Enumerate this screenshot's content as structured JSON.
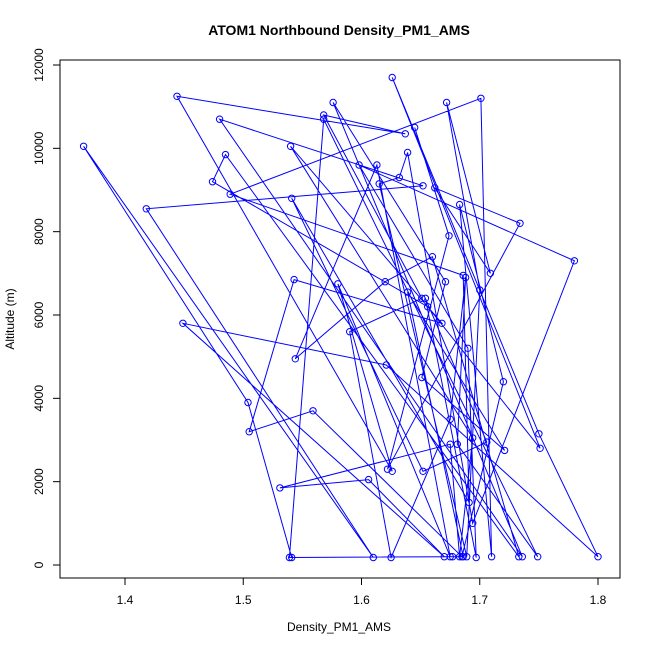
{
  "chart_data": {
    "type": "line",
    "title": "ATOM1 Northbound Density_PM1_AMS",
    "xlabel": "Density_PM1_AMS",
    "ylabel": "Altitude (m)",
    "xlim": [
      1.35,
      1.8
    ],
    "ylim": [
      0,
      12000
    ],
    "xticks": [
      1.4,
      1.5,
      1.6,
      1.7,
      1.8
    ],
    "xtick_labels": [
      "1.4",
      "1.5",
      "1.6",
      "1.7",
      "1.8"
    ],
    "yticks": [
      0,
      2000,
      4000,
      6000,
      8000,
      10000,
      12000
    ],
    "ytick_labels": [
      "0",
      "2000",
      "4000",
      "6000",
      "8000",
      "10000",
      "12000"
    ],
    "grid": false,
    "legend": "none",
    "series": [
      {
        "color": "#0000ff",
        "marker": "open-circle",
        "x": [
          1.541,
          1.504,
          1.365,
          1.61,
          1.418,
          1.652,
          1.48,
          1.736,
          1.576,
          1.671,
          1.651,
          1.721,
          1.639,
          1.686,
          1.677,
          1.539,
          1.568,
          1.749,
          1.681,
          1.688,
          1.675,
          1.625,
          1.59,
          1.651,
          1.568,
          1.637,
          1.444,
          1.626,
          1.58,
          1.675,
          1.613,
          1.544,
          1.62,
          1.66,
          1.733,
          1.485,
          1.474,
          1.656,
          1.751,
          1.626,
          1.75,
          1.8,
          1.621,
          1.449,
          1.67,
          1.606,
          1.531,
          1.675,
          1.683,
          1.694,
          1.54,
          1.668,
          1.543,
          1.505,
          1.559,
          1.685,
          1.72,
          1.683,
          1.71,
          1.701,
          1.489,
          1.686,
          1.691,
          1.541,
          1.652,
          1.706,
          1.654,
          1.697,
          1.69,
          1.598,
          1.78,
          1.694,
          1.639,
          1.632,
          1.615,
          1.689,
          1.7,
          1.672,
          1.709,
          1.662,
          1.734,
          1.622,
          1.674,
          1.645
        ],
        "y": [
          180,
          3900,
          10050,
          180,
          8550,
          9100,
          10700,
          200,
          11100,
          6800,
          4500,
          2750,
          6550,
          200,
          200,
          180,
          10700,
          200,
          2900,
          6900,
          3500,
          180,
          5600,
          6400,
          10800,
          10350,
          11250,
          2250,
          6750,
          200,
          9600,
          4950,
          6800,
          7400,
          200,
          9850,
          9200,
          6200,
          2800,
          11700,
          3150,
          200,
          4800,
          5800,
          200,
          2050,
          1850,
          2900,
          200,
          3050,
          10050,
          5800,
          6850,
          3200,
          3700,
          200,
          4400,
          8650,
          200,
          11200,
          8900,
          6950,
          1500,
          8800,
          2250,
          2950,
          6400,
          180,
          5200,
          9600,
          7300,
          1000,
          9900,
          9300,
          9150,
          200,
          6600,
          11100,
          7000,
          9050,
          8200,
          2300,
          7900,
          10500
        ]
      }
    ]
  }
}
